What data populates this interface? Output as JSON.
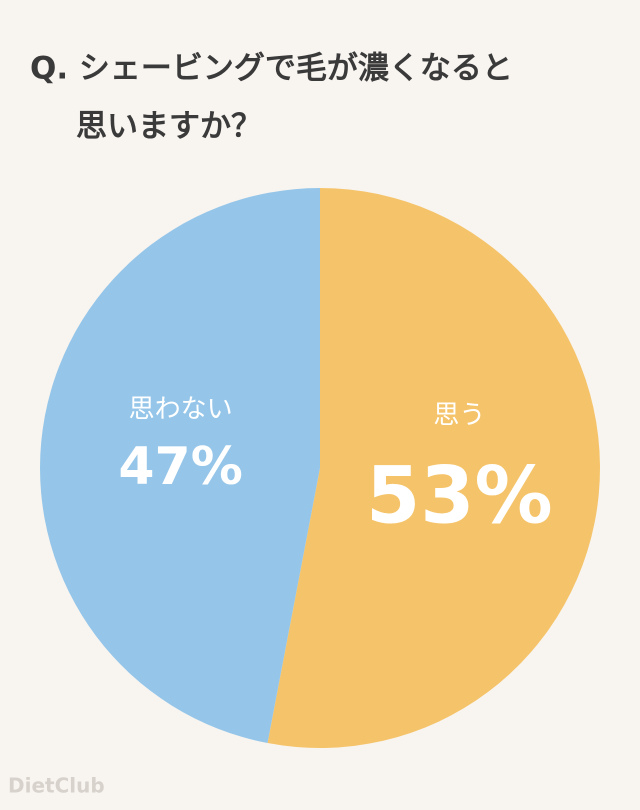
{
  "chart_data": {
    "type": "pie",
    "title": [
      "Q. シェービングで毛が濃くなると",
      "思いますか？"
    ],
    "categories": [
      "思う",
      "思わない"
    ],
    "values": [
      53,
      47
    ],
    "value_labels": [
      "53%",
      "47%"
    ],
    "colors": [
      "#f5c46a",
      "#95c6e9"
    ],
    "watermark": "DietClub"
  }
}
